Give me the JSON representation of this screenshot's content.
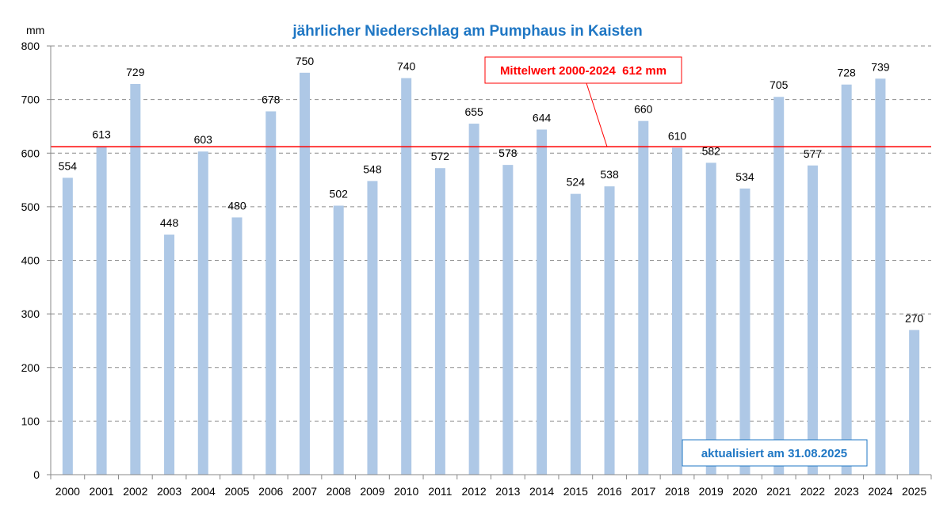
{
  "chart_data": {
    "type": "bar",
    "title": "jährlicher Niederschlag am Pumphaus in Kaisten",
    "ylabel": "mm",
    "xlabel": "",
    "ylim": [
      0,
      800
    ],
    "yticks": [
      0,
      100,
      200,
      300,
      400,
      500,
      600,
      700,
      800
    ],
    "grid": true,
    "categories": [
      "2000",
      "2001",
      "2002",
      "2003",
      "2004",
      "2005",
      "2006",
      "2007",
      "2008",
      "2009",
      "2010",
      "2011",
      "2012",
      "2013",
      "2014",
      "2015",
      "2016",
      "2017",
      "2018",
      "2019",
      "2020",
      "2021",
      "2022",
      "2023",
      "2024",
      "2025"
    ],
    "values": [
      554,
      613,
      729,
      448,
      603,
      480,
      678,
      750,
      502,
      548,
      740,
      572,
      655,
      578,
      644,
      524,
      538,
      660,
      610,
      582,
      534,
      705,
      577,
      728,
      739,
      270
    ],
    "bar_color": "#aec8e6",
    "mean_line": {
      "value": 612,
      "label": "Mittelwert 2000-2024  612 mm",
      "color": "#ff0000"
    },
    "update_note": "aktualisiert am 31.08.2025"
  }
}
